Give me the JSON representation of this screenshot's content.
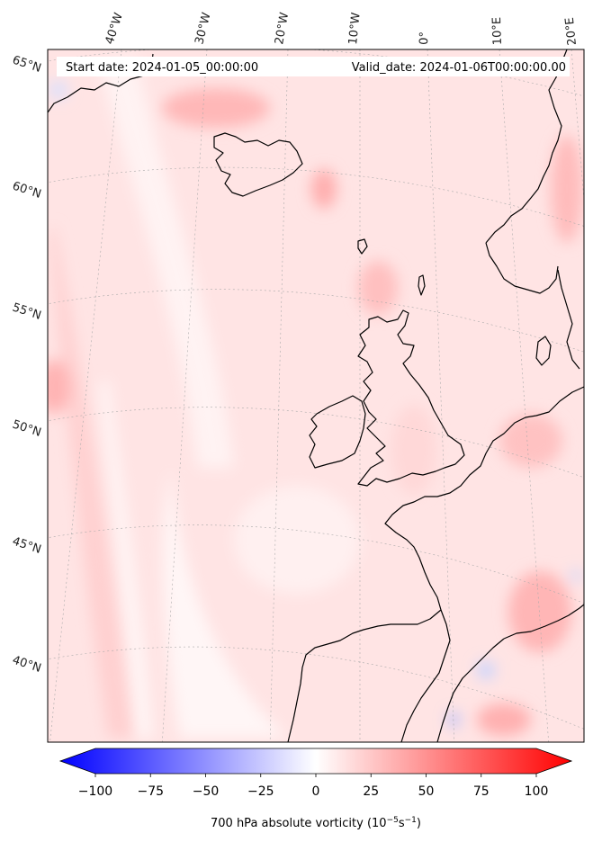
{
  "info": {
    "start_date": "Start date: 2024-01-05_00:00:00",
    "valid_date": "Valid_date: 2024-01-06T00:00:00.00"
  },
  "map": {
    "projection": "conic",
    "lat_labels": [
      "65°N",
      "60°N",
      "55°N",
      "50°N",
      "45°N",
      "40°N"
    ],
    "lon_labels": [
      "40°W",
      "30°W",
      "20°W",
      "10°W",
      "0°",
      "10°E",
      "20°E"
    ],
    "field": "700 hPa absolute vorticity"
  },
  "colorbar": {
    "ticks": [
      "−100",
      "−75",
      "−50",
      "−25",
      "0",
      "25",
      "50",
      "75",
      "100"
    ],
    "label_main": "700 hPa absolute vorticity (10",
    "label_exp1": "−5",
    "label_mid": "s",
    "label_exp2": "−1",
    "label_end": ")",
    "min_color": "#0000ff",
    "mid_color": "#ffffff",
    "max_color": "#ff0000"
  }
}
